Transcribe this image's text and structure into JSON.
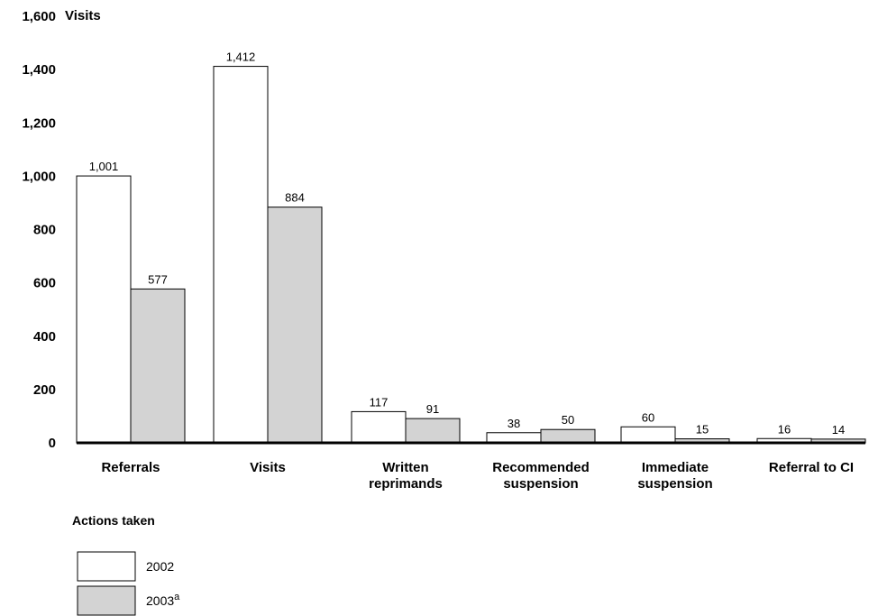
{
  "chart_data": {
    "type": "bar",
    "ylabel": "Visits",
    "xlabel": "Actions taken",
    "ylim": [
      0,
      1600
    ],
    "yticks": [
      "0",
      "200",
      "400",
      "600",
      "800",
      "1,000",
      "1,200",
      "1,400",
      "1,600"
    ],
    "categories": [
      [
        "Referrals"
      ],
      [
        "Visits"
      ],
      [
        "Written",
        "reprimands"
      ],
      [
        "Recommended",
        "suspension"
      ],
      [
        "Immediate",
        "suspension"
      ],
      [
        "Referral to CI"
      ]
    ],
    "series": [
      {
        "name": "2002",
        "values": [
          1001,
          1412,
          117,
          38,
          60,
          16
        ],
        "labels": [
          "1,001",
          "1,412",
          "117",
          "38",
          "60",
          "16"
        ],
        "fill": "#ffffff"
      },
      {
        "name": "2003",
        "name_suffix": "a",
        "values": [
          577,
          884,
          91,
          50,
          15,
          14
        ],
        "labels": [
          "577",
          "884",
          "91",
          "50",
          "15",
          "14"
        ],
        "fill": "#d3d3d3"
      }
    ]
  }
}
